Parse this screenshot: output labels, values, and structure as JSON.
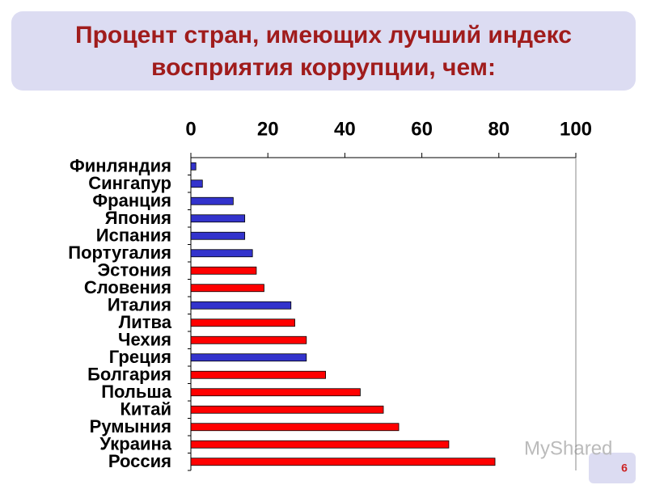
{
  "chart_data": {
    "type": "barh",
    "title": "Процент стран, имеющих лучший индекс восприятия коррупции, чем:",
    "categories": [
      "Финляндия",
      "Сингапур",
      "Франция",
      "Япония",
      "Испания",
      "Португалия",
      "Эстония",
      "Словения",
      "Италия",
      "Литва",
      "Чехия",
      "Греция",
      "Болгария",
      "Польша",
      "Китай",
      "Румыния",
      "Украина",
      "Россия"
    ],
    "values": [
      1.3,
      3,
      11,
      14,
      14,
      16,
      17,
      19,
      26,
      27,
      30,
      30,
      35,
      44,
      50,
      54,
      67,
      79
    ],
    "colors": [
      "#3333cc",
      "#3333cc",
      "#3333cc",
      "#3333cc",
      "#3333cc",
      "#3333cc",
      "#ff0000",
      "#ff0000",
      "#3333cc",
      "#ff0000",
      "#ff0000",
      "#3333cc",
      "#ff0000",
      "#ff0000",
      "#ff0000",
      "#ff0000",
      "#ff0000",
      "#ff0000"
    ],
    "xlim": [
      0,
      100
    ],
    "xticks": [
      0,
      20,
      40,
      60,
      80,
      100
    ]
  },
  "watermark": "MyShared",
  "page_number": "6"
}
